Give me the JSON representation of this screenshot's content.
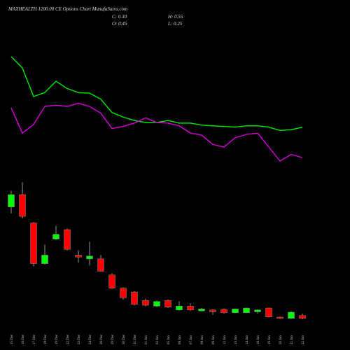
{
  "chart_data": {
    "type": "candlestick",
    "title": "MAXHEALTH 1200.00 CE Options Chart MunafaSutra.com",
    "ohlc_labels": [
      "C: 0.30",
      "H: 0.55",
      "O: 0.45",
      "L: 0.25"
    ],
    "categories": [
      "15 Dec",
      "16 Dec",
      "17 Dec",
      "18 Dec",
      "19 Dec",
      "22 Dec",
      "23 Dec",
      "24 Dec",
      "26 Dec",
      "29 Dec",
      "30 Dec",
      "31 Dec",
      "01 Jan",
      "02 Jan",
      "05 Jan",
      "06 Jan",
      "07 Jan",
      "08 Jan",
      "09 Jan",
      "12 Jan",
      "13 Jan",
      "14 Jan",
      "16 Jan",
      "19 Jan",
      "20 Jan",
      "21 Jan",
      "22 Jan"
    ],
    "open": [
      6.2,
      6.85,
      5.35,
      3.2,
      4.5,
      5.0,
      3.65,
      3.45,
      3.45,
      2.6,
      1.9,
      1.7,
      1.25,
      0.95,
      1.25,
      0.75,
      0.95,
      0.7,
      0.75,
      0.78,
      0.6,
      0.6,
      0.65,
      0.85,
      0.37,
      0.3,
      0.45
    ],
    "high": [
      7.05,
      7.5,
      5.4,
      4.2,
      5.2,
      5.05,
      3.9,
      4.35,
      3.65,
      2.7,
      1.95,
      1.75,
      1.35,
      1.25,
      1.3,
      1.2,
      1.1,
      0.85,
      0.78,
      0.82,
      0.82,
      0.88,
      0.78,
      0.88,
      0.4,
      0.68,
      0.55
    ],
    "low": [
      5.85,
      5.6,
      3.05,
      3.15,
      4.45,
      3.9,
      3.25,
      3.1,
      2.78,
      1.85,
      1.3,
      1.0,
      0.95,
      0.9,
      0.85,
      0.7,
      0.7,
      0.68,
      0.5,
      0.55,
      0.58,
      0.58,
      0.55,
      0.35,
      0.28,
      0.28,
      0.25
    ],
    "close": [
      6.85,
      5.7,
      3.2,
      3.65,
      4.75,
      3.95,
      3.55,
      3.6,
      2.8,
      1.9,
      1.4,
      1.05,
      1.0,
      1.2,
      0.9,
      0.95,
      0.75,
      0.8,
      0.65,
      0.6,
      0.8,
      0.85,
      0.75,
      0.38,
      0.3,
      0.63,
      0.3
    ],
    "up_color": "#00ff00",
    "down_color": "#ff0000",
    "ylim": [
      0,
      8
    ],
    "lines": [
      {
        "color": "#00dd00",
        "values": [
          89,
          80.5,
          59,
          62,
          70.5,
          65,
          62,
          61.5,
          57,
          47,
          43.5,
          41,
          39.5,
          39.5,
          41,
          39,
          39,
          37.5,
          37,
          36.5,
          36,
          37,
          37,
          36,
          33.5,
          34,
          36
        ]
      },
      {
        "color": "#cc00cc",
        "values": [
          50.5,
          31.5,
          38,
          51.5,
          52.5,
          51.5,
          54,
          51.5,
          46.5,
          35,
          36.5,
          39,
          43,
          39.5,
          39,
          37,
          31.5,
          30,
          23,
          21,
          28,
          30.5,
          31.5,
          21,
          10.5,
          15.5,
          13
        ]
      }
    ],
    "line_ylim": [
      0,
      100
    ]
  }
}
